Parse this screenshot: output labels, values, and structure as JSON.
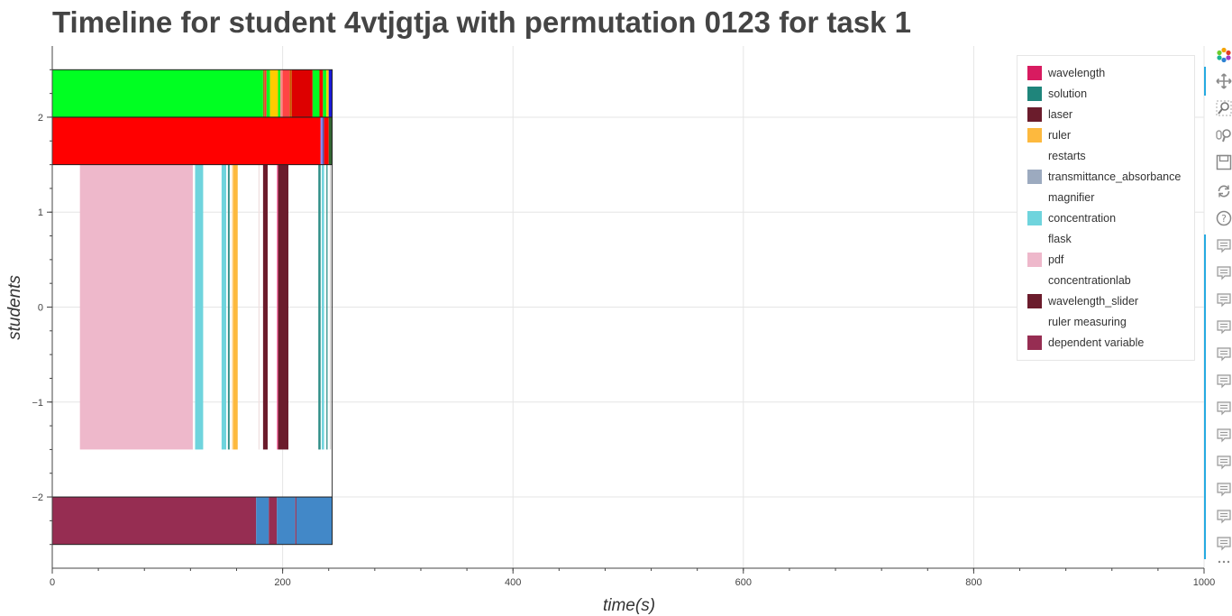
{
  "title": "Timeline for student 4vtjgtja with permutation 0123 for task 1",
  "chart_data": {
    "type": "timeline",
    "title": "Timeline for student 4vtjgtja with permutation 0123 for task 1",
    "xlabel": "time(s)",
    "ylabel": "students",
    "xlim": [
      0,
      1000
    ],
    "ylim": [
      -2.75,
      2.75
    ],
    "xticks": [
      0,
      200,
      400,
      600,
      800,
      1000
    ],
    "xtick_labels": [
      "0",
      "200",
      "400",
      "600",
      "800",
      "1000"
    ],
    "yticks": [
      2,
      1,
      0,
      -1,
      -2
    ],
    "ytick_labels": [
      "2",
      "1",
      "0",
      "−1",
      "−2"
    ],
    "grid": true,
    "legend_position": "top-right",
    "rows": [
      {
        "y_range": [
          2,
          2.5
        ],
        "segments": [
          {
            "start": 0,
            "end": 183,
            "color": "#00ff22"
          },
          {
            "start": 183,
            "end": 184.5,
            "color": "#b5651d"
          },
          {
            "start": 184.5,
            "end": 186,
            "color": "#ff3333"
          },
          {
            "start": 186,
            "end": 189,
            "color": "#00ff22"
          },
          {
            "start": 189,
            "end": 196,
            "color": "#ffcc00"
          },
          {
            "start": 196,
            "end": 198,
            "color": "#00ff22"
          },
          {
            "start": 198,
            "end": 200,
            "color": "#ff8888"
          },
          {
            "start": 200,
            "end": 206,
            "color": "#ff4444"
          },
          {
            "start": 206,
            "end": 208,
            "color": "#cc5500"
          },
          {
            "start": 208,
            "end": 226,
            "color": "#dd0000"
          },
          {
            "start": 226,
            "end": 232,
            "color": "#00ff22"
          },
          {
            "start": 232,
            "end": 235,
            "color": "#ff0000"
          },
          {
            "start": 235,
            "end": 238,
            "color": "#00ff22"
          },
          {
            "start": 238,
            "end": 240,
            "color": "#ffcc00"
          },
          {
            "start": 240,
            "end": 243,
            "color": "#1a1adb"
          }
        ]
      },
      {
        "y_range": [
          1.5,
          2
        ],
        "segments": [
          {
            "start": 0,
            "end": 233,
            "color": "#ff0000"
          },
          {
            "start": 233,
            "end": 234.5,
            "color": "#8888ff"
          },
          {
            "start": 234.5,
            "end": 236,
            "color": "#5555aa"
          },
          {
            "start": 236,
            "end": 240,
            "color": "#ff0000"
          },
          {
            "start": 240,
            "end": 243,
            "color": "#336633"
          }
        ]
      },
      {
        "y_range": [
          -1.5,
          1.5
        ],
        "segments": [
          {
            "start": 24,
            "end": 122,
            "color": "#eeb8cb"
          },
          {
            "start": 124,
            "end": 131,
            "color": "#6fd4dd"
          },
          {
            "start": 147,
            "end": 151,
            "color": "#6fd4dd"
          },
          {
            "start": 152.5,
            "end": 154,
            "color": "#2f8e87"
          },
          {
            "start": 156,
            "end": 157,
            "color": "#ffd9a0"
          },
          {
            "start": 157,
            "end": 161,
            "color": "#fdb93e"
          },
          {
            "start": 179,
            "end": 180,
            "color": "#f0e0e0"
          },
          {
            "start": 183,
            "end": 187,
            "color": "#6b1c2c"
          },
          {
            "start": 195,
            "end": 196,
            "color": "#ff6ea6"
          },
          {
            "start": 196,
            "end": 205,
            "color": "#6b1c2c"
          },
          {
            "start": 231,
            "end": 233,
            "color": "#2f8e87"
          },
          {
            "start": 234,
            "end": 236,
            "color": "#6fd4dd"
          },
          {
            "start": 238,
            "end": 239,
            "color": "#2f8e87"
          },
          {
            "start": 241,
            "end": 242,
            "color": "#cccccc"
          }
        ]
      },
      {
        "y_range": [
          -2.5,
          -2
        ],
        "segments": [
          {
            "start": 0,
            "end": 177,
            "color": "#962d52"
          },
          {
            "start": 177,
            "end": 188,
            "color": "#4288c8"
          },
          {
            "start": 188,
            "end": 195,
            "color": "#962d52"
          },
          {
            "start": 195,
            "end": 211,
            "color": "#4288c8"
          },
          {
            "start": 211,
            "end": 212,
            "color": "#962d52"
          },
          {
            "start": 212,
            "end": 243,
            "color": "#4288c8"
          }
        ]
      }
    ],
    "legend": [
      {
        "label": "wavelength",
        "color": "#d81b60"
      },
      {
        "label": "solution",
        "color": "#1f857b"
      },
      {
        "label": "laser",
        "color": "#6b1c2c"
      },
      {
        "label": "ruler",
        "color": "#fdb93e"
      },
      {
        "label": "restarts",
        "color": ""
      },
      {
        "label": "transmittance_absorbance",
        "color": "#9caabf"
      },
      {
        "label": "magnifier",
        "color": ""
      },
      {
        "label": "concentration",
        "color": "#6fd4dd"
      },
      {
        "label": "flask",
        "color": ""
      },
      {
        "label": "pdf",
        "color": "#eeb8cb"
      },
      {
        "label": "concentrationlab",
        "color": ""
      },
      {
        "label": "wavelength_slider",
        "color": "#6b1c2c"
      },
      {
        "label": "ruler measuring",
        "color": ""
      },
      {
        "label": "dependent variable",
        "color": "#962d52"
      }
    ]
  },
  "toolbar": {
    "icons": [
      "bokeh-logo-icon",
      "pan-icon",
      "box-zoom-icon",
      "wheel-zoom-icon",
      "save-icon",
      "reset-icon",
      "help-icon",
      "hover-icon",
      "hover-icon",
      "hover-icon",
      "hover-icon",
      "hover-icon",
      "hover-icon",
      "hover-icon",
      "hover-icon",
      "hover-icon",
      "hover-icon",
      "hover-icon",
      "hover-icon",
      "more-icon"
    ],
    "accent_color": "#26aae1"
  }
}
